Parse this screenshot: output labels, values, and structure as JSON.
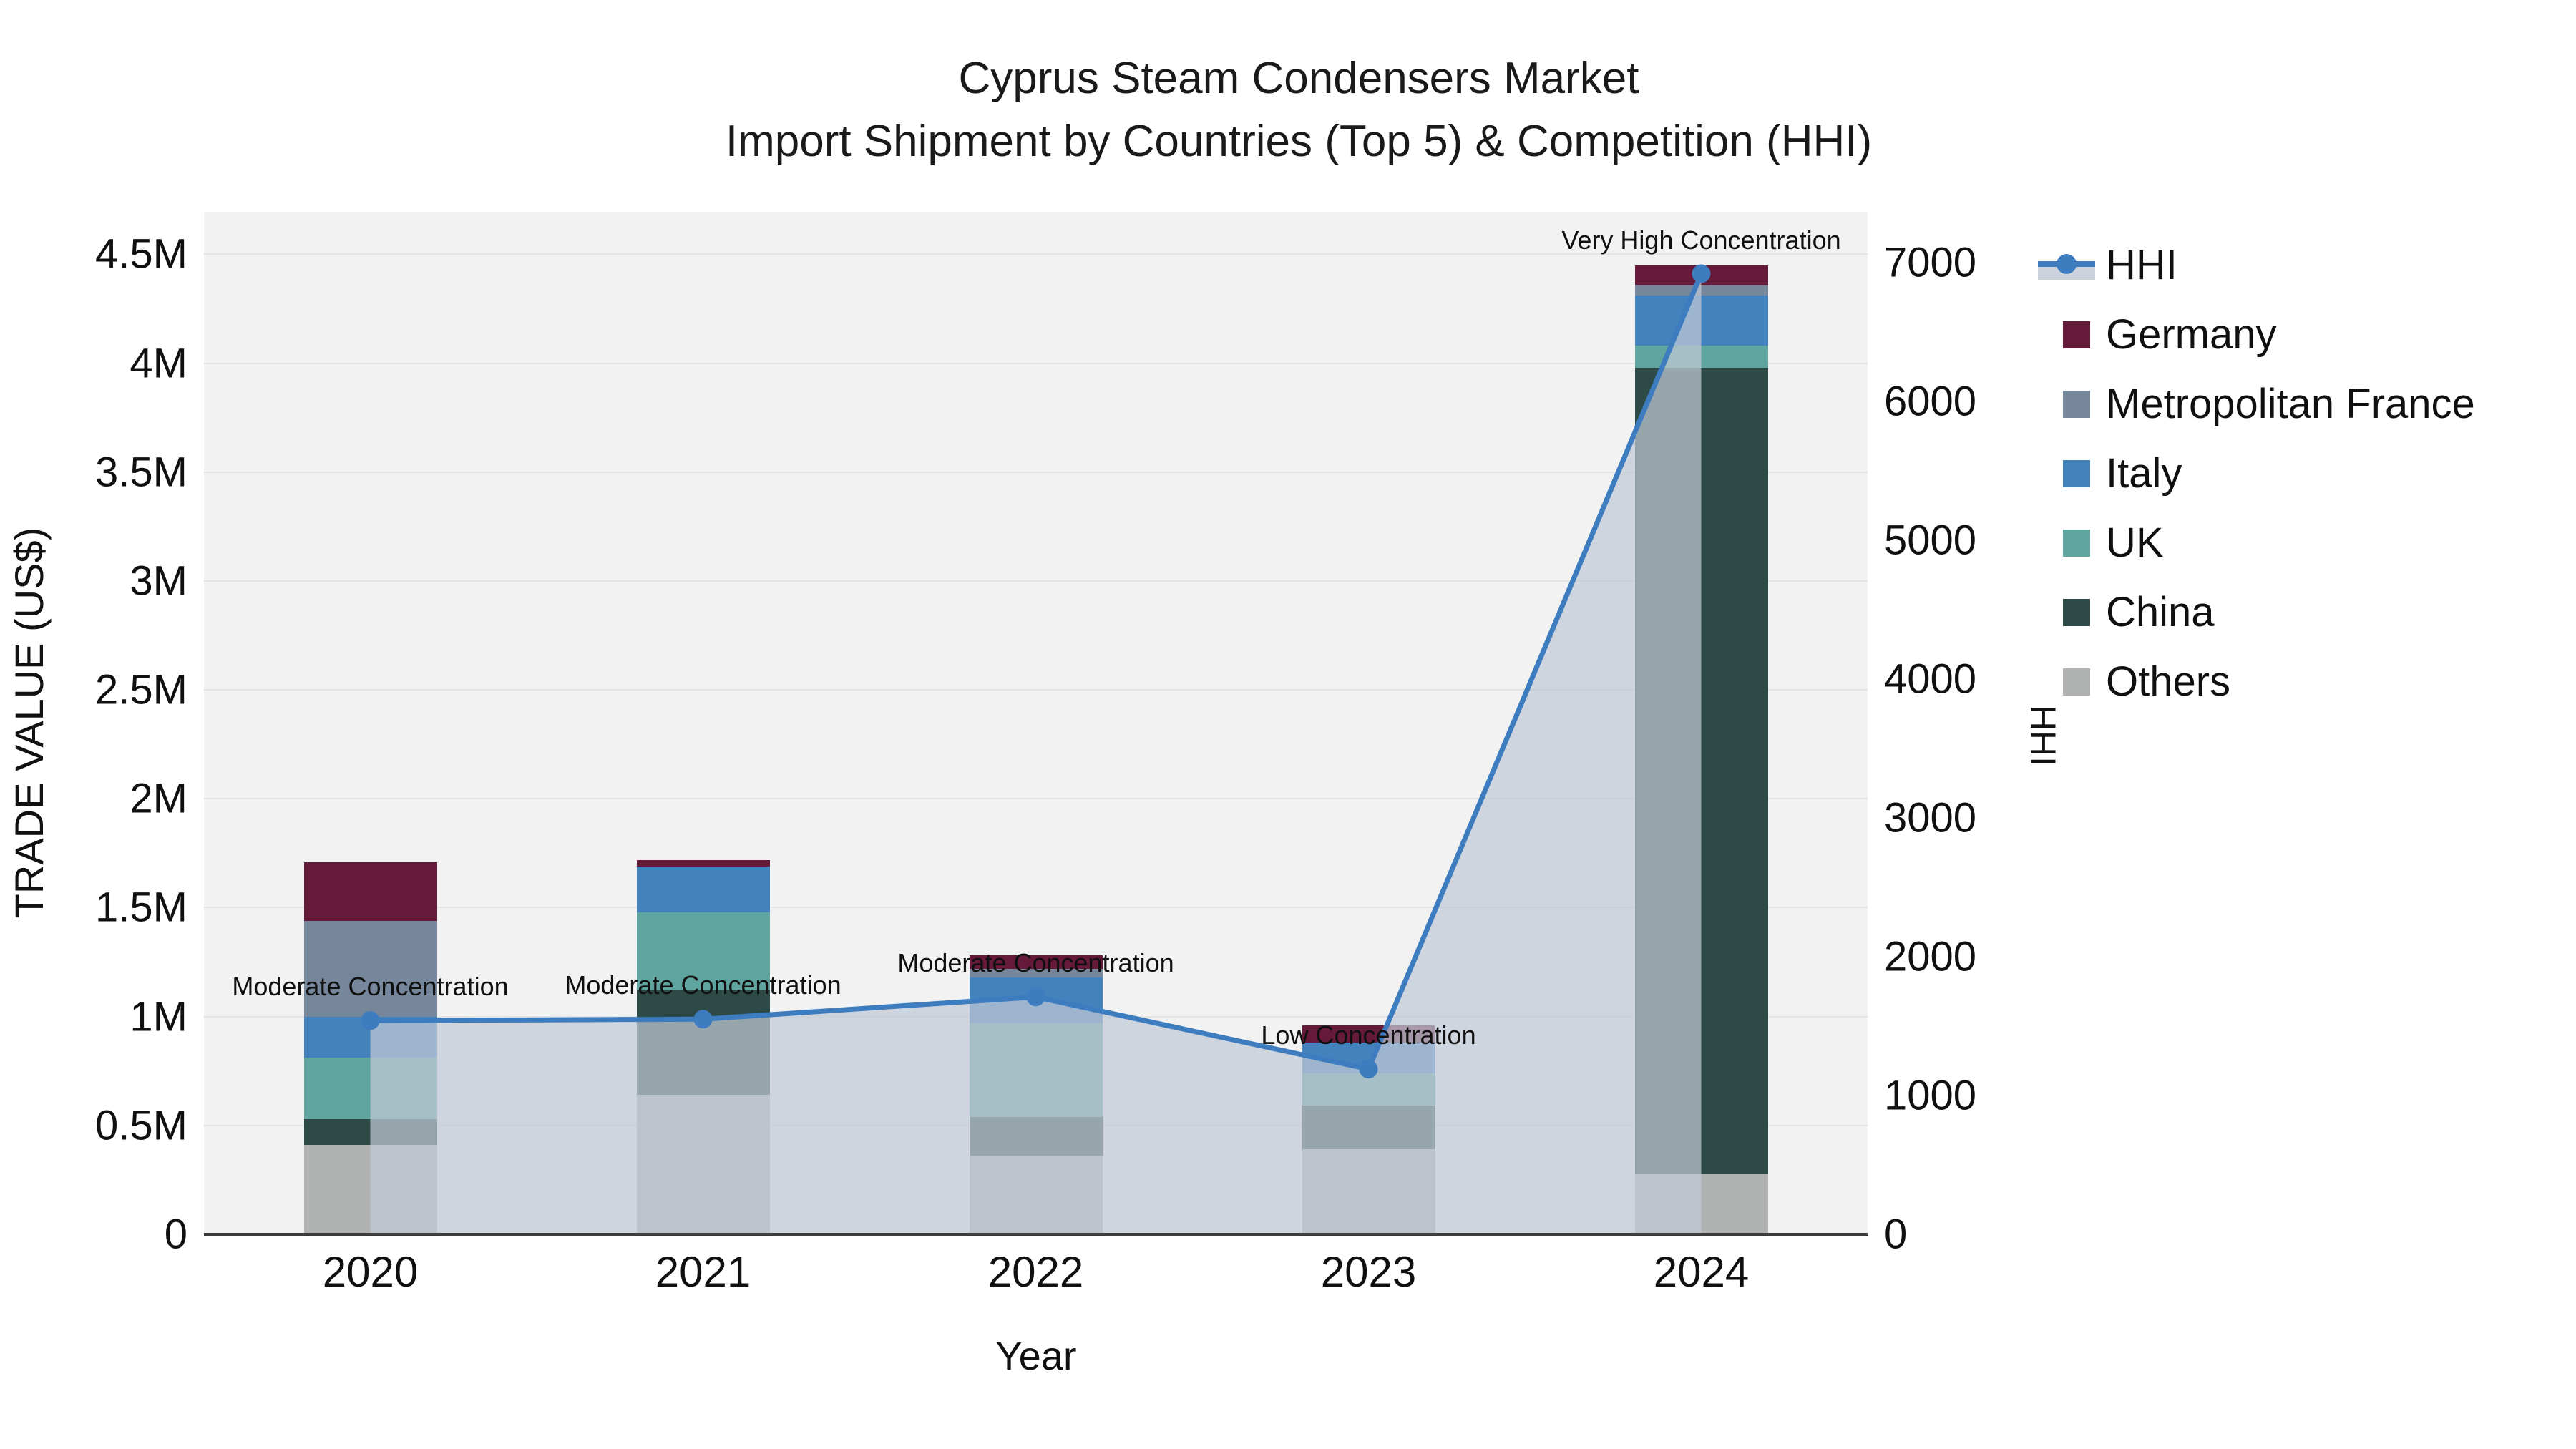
{
  "title": {
    "line1": "Cyprus Steam Condensers Market",
    "line2": "Import Shipment by Countries (Top 5) & Competition (HHI)"
  },
  "axes": {
    "left_title": "TRADE VALUE (US$)",
    "x_title": "Year",
    "right_title": "HHI"
  },
  "legend_labels": [
    "HHI",
    "Germany",
    "Metropolitan France",
    "Italy",
    "UK",
    "China",
    "Others"
  ],
  "chart_data": {
    "type": "bar+line",
    "description": "Stacked bars = import trade value by origin country (left axis, US$ millions); line = HHI market concentration (right axis); shaded area under HHI line.",
    "categories": [
      "2020",
      "2021",
      "2022",
      "2023",
      "2024"
    ],
    "unit": "M US$",
    "stack_order_bottom_to_top": [
      "Others",
      "China",
      "UK",
      "Italy",
      "Metropolitan France",
      "Germany"
    ],
    "series": [
      {
        "name": "Germany",
        "color": "#641a38",
        "values": [
          0.27,
          0.03,
          0.06,
          0.08,
          0.09
        ]
      },
      {
        "name": "Metropolitan France",
        "color": "#76879b",
        "values": [
          0.44,
          0.0,
          0.04,
          0.0,
          0.05
        ]
      },
      {
        "name": "Italy",
        "color": "#4382bd",
        "values": [
          0.19,
          0.21,
          0.21,
          0.14,
          0.23
        ]
      },
      {
        "name": "UK",
        "color": "#60a49f",
        "values": [
          0.28,
          0.36,
          0.43,
          0.15,
          0.1
        ]
      },
      {
        "name": "China",
        "color": "#2d4a47",
        "values": [
          0.12,
          0.48,
          0.18,
          0.2,
          3.7
        ]
      },
      {
        "name": "Others",
        "color": "#b0b2b2",
        "values": [
          0.41,
          0.64,
          0.36,
          0.39,
          0.28
        ]
      }
    ],
    "bar_totals": [
      1.71,
      1.72,
      1.28,
      0.96,
      4.45
    ],
    "hhi": {
      "name": "HHI",
      "line_color": "#3c7cbf",
      "fill_color": "rgba(193,201,214,0.72)",
      "values": [
        1540,
        1550,
        1710,
        1190,
        6920
      ]
    },
    "annotations": [
      {
        "year_index": 0,
        "label": "Moderate Concentration"
      },
      {
        "year_index": 1,
        "label": "Moderate Concentration"
      },
      {
        "year_index": 2,
        "label": "Moderate Concentration"
      },
      {
        "year_index": 3,
        "label": "Low Concentration"
      },
      {
        "year_index": 4,
        "label": "Very High Concentration"
      }
    ],
    "left_axis": {
      "label": "TRADE VALUE (US$)",
      "max_value_at_top": 4.695,
      "ticks": [
        {
          "v": 0,
          "label": "0"
        },
        {
          "v": 0.5,
          "label": "0.5M"
        },
        {
          "v": 1,
          "label": "1M"
        },
        {
          "v": 1.5,
          "label": "1.5M"
        },
        {
          "v": 2,
          "label": "2M"
        },
        {
          "v": 2.5,
          "label": "2.5M"
        },
        {
          "v": 3,
          "label": "3M"
        },
        {
          "v": 3.5,
          "label": "3.5M"
        },
        {
          "v": 4,
          "label": "4M"
        },
        {
          "v": 4.5,
          "label": "4.5M"
        }
      ]
    },
    "right_axis": {
      "label": "HHI",
      "max_value_at_top": 7366,
      "ticks": [
        {
          "v": 0,
          "label": "0"
        },
        {
          "v": 1000,
          "label": "1000"
        },
        {
          "v": 2000,
          "label": "2000"
        },
        {
          "v": 3000,
          "label": "3000"
        },
        {
          "v": 4000,
          "label": "4000"
        },
        {
          "v": 5000,
          "label": "5000"
        },
        {
          "v": 6000,
          "label": "6000"
        },
        {
          "v": 7000,
          "label": "7000"
        }
      ]
    },
    "grid": "horizontal lines at 0.5M intervals",
    "legend_position": "right, outside plot",
    "plot_bg": "#f2f2f2"
  }
}
